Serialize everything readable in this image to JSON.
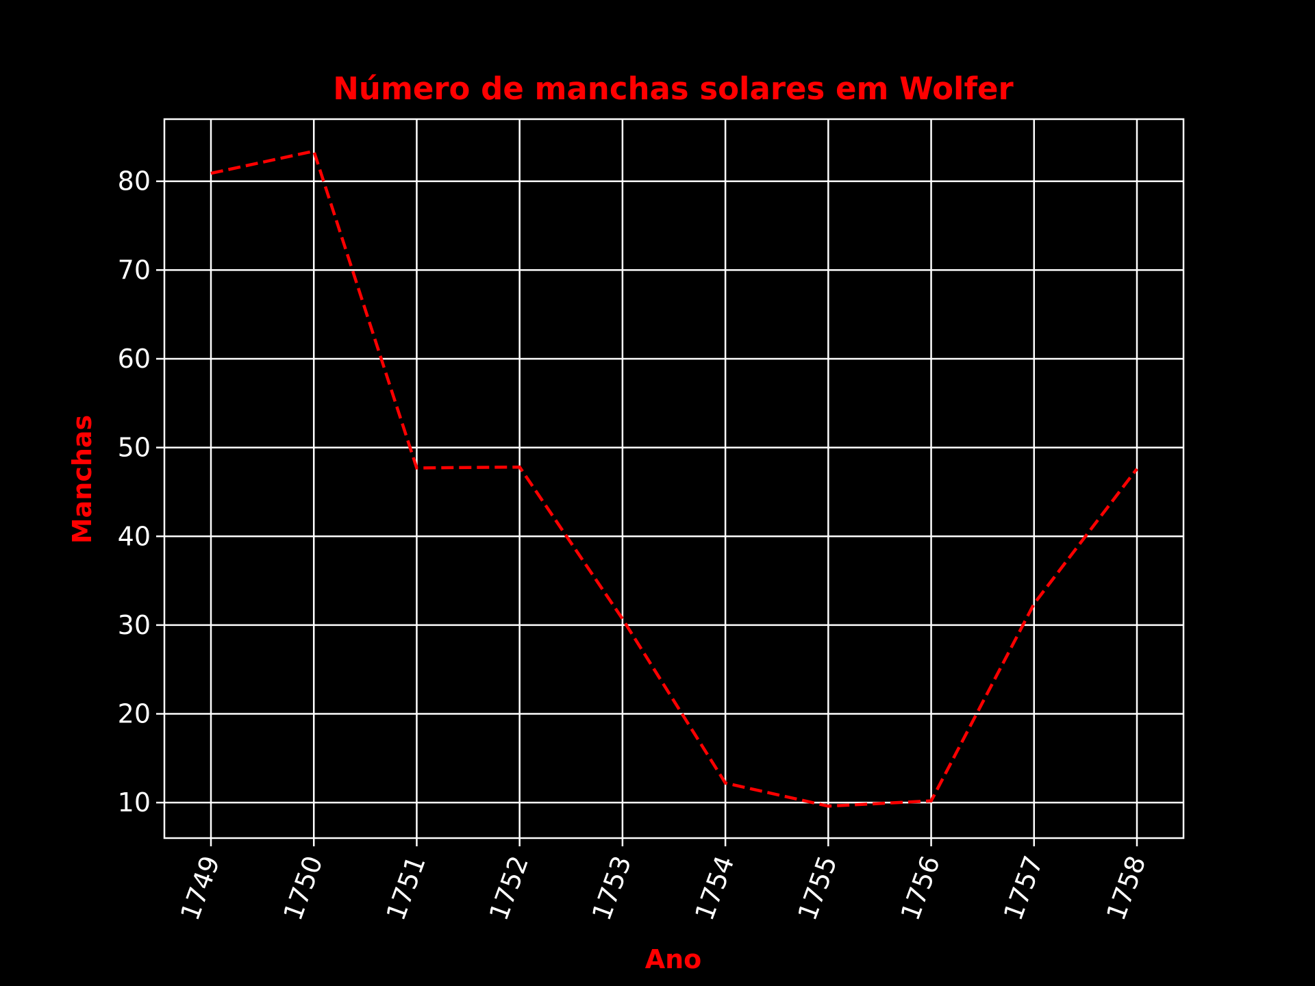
{
  "chart_data": {
    "type": "line",
    "title": "Número de manchas solares em Wolfer",
    "xlabel": "Ano",
    "ylabel": "Manchas",
    "x": [
      "1749",
      "1750",
      "1751",
      "1752",
      "1753",
      "1754",
      "1755",
      "1756",
      "1757",
      "1758"
    ],
    "yticks": [
      10,
      20,
      30,
      40,
      50,
      60,
      70,
      80
    ],
    "ylim": [
      6,
      87
    ],
    "grid": true,
    "series": [
      {
        "values": [
          80.9,
          83.4,
          47.7,
          47.8,
          30.7,
          12.2,
          9.6,
          10.2,
          32.4,
          47.6
        ],
        "color": "#ff0000",
        "line_style": "dashed"
      }
    ],
    "colors": {
      "background": "#000000",
      "text": "#ffffff",
      "accent": "#ff0000"
    }
  }
}
